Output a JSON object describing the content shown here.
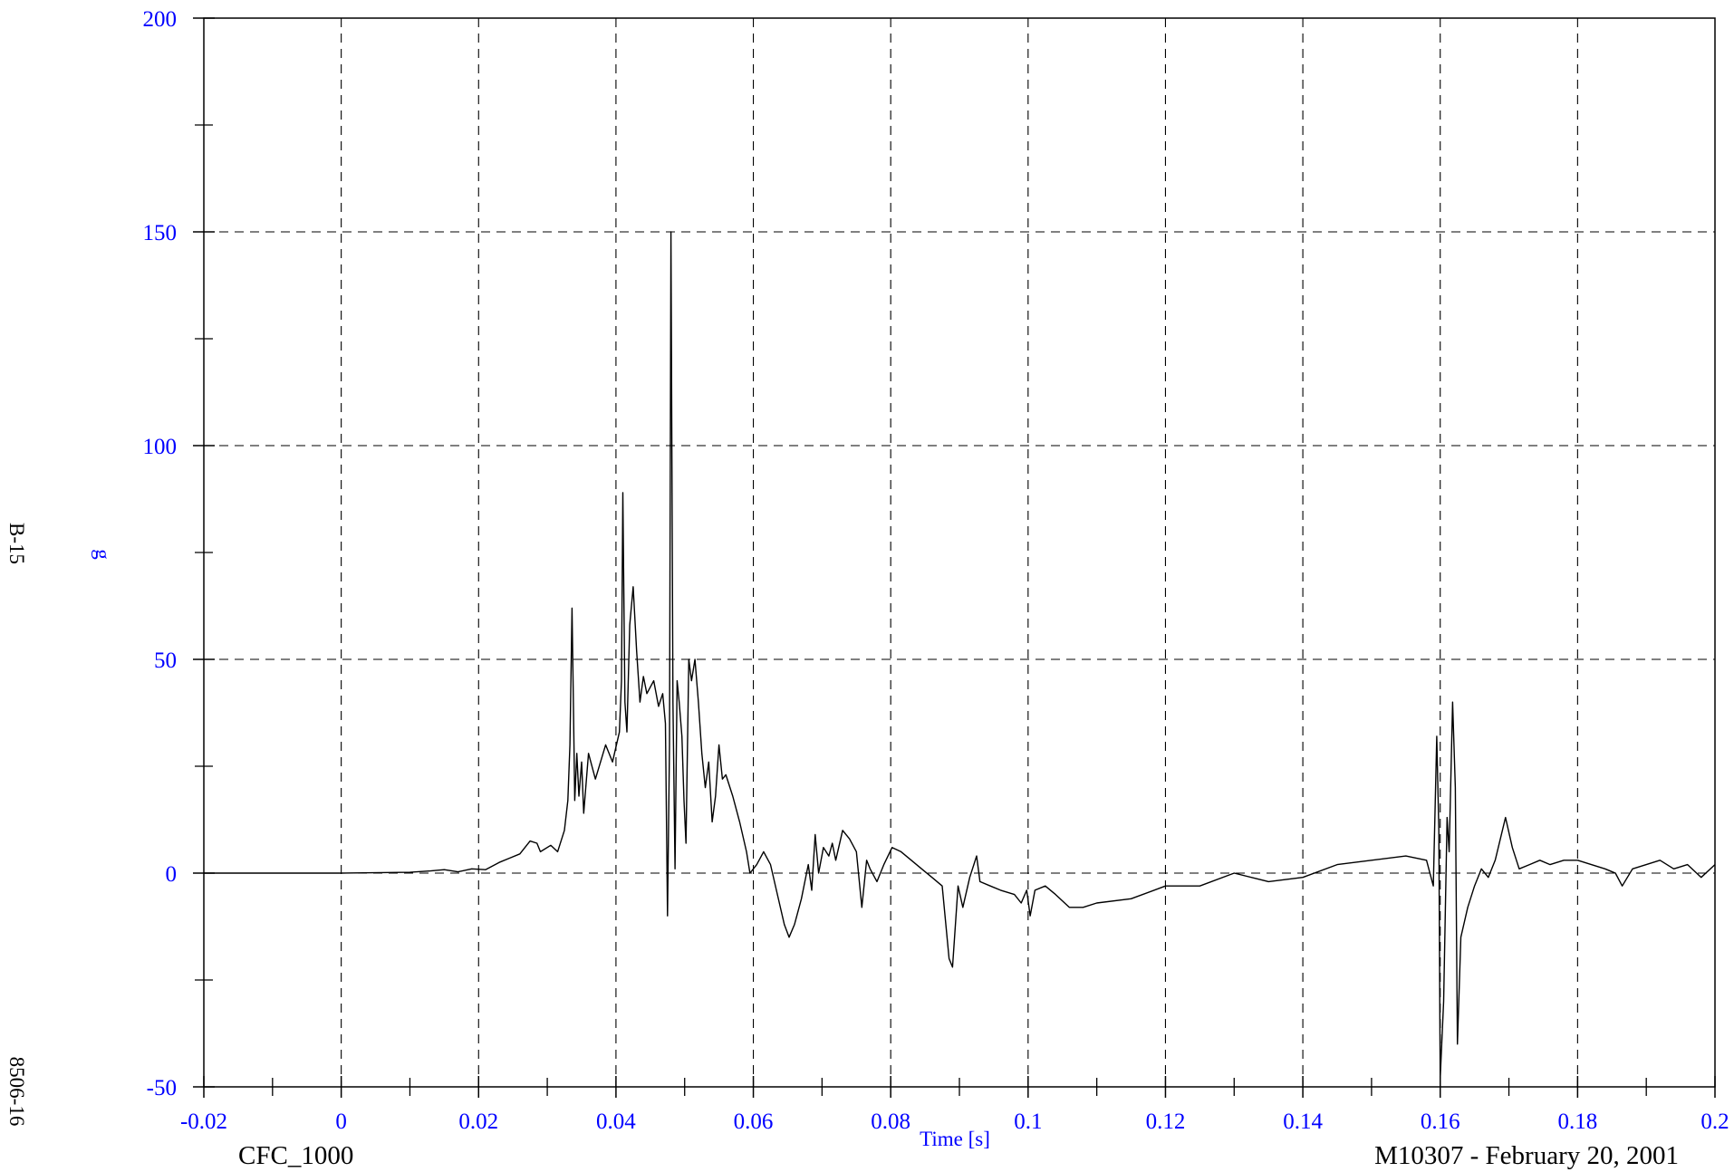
{
  "chart_data": {
    "type": "line",
    "xlabel": "Time [s]",
    "ylabel": "g",
    "xlim": [
      -0.02,
      0.2
    ],
    "ylim": [
      -50,
      200
    ],
    "x_ticks": [
      -0.02,
      0,
      0.02,
      0.04,
      0.06,
      0.08,
      0.1,
      0.12,
      0.14,
      0.16,
      0.18,
      0.2
    ],
    "x_tick_labels": [
      "-0.02",
      "0",
      "0.02",
      "0.04",
      "0.06",
      "0.08",
      "0.1",
      "0.12",
      "0.14",
      "0.16",
      "0.18",
      "0.2"
    ],
    "y_ticks": [
      -50,
      0,
      50,
      100,
      150,
      200
    ],
    "y_tick_labels": [
      "-50",
      "0",
      "50",
      "100",
      "150",
      "200"
    ],
    "grid": true,
    "series": [
      {
        "points": [
          [
            -0.02,
            0
          ],
          [
            0,
            0
          ],
          [
            0.01,
            0.2
          ],
          [
            0.013,
            0.5
          ],
          [
            0.015,
            0.8
          ],
          [
            0.017,
            0.3
          ],
          [
            0.019,
            1.0
          ],
          [
            0.021,
            0.8
          ],
          [
            0.023,
            2.5
          ],
          [
            0.0245,
            3.5
          ],
          [
            0.026,
            4.5
          ],
          [
            0.0275,
            7.5
          ],
          [
            0.0285,
            7.0
          ],
          [
            0.029,
            5.0
          ],
          [
            0.0305,
            6.5
          ],
          [
            0.0315,
            5.0
          ],
          [
            0.0325,
            10
          ],
          [
            0.033,
            17
          ],
          [
            0.0333,
            30
          ],
          [
            0.0336,
            62
          ],
          [
            0.0338,
            40
          ],
          [
            0.034,
            17
          ],
          [
            0.0343,
            28
          ],
          [
            0.0346,
            18
          ],
          [
            0.035,
            26
          ],
          [
            0.0353,
            14
          ],
          [
            0.036,
            28
          ],
          [
            0.037,
            22
          ],
          [
            0.0385,
            30
          ],
          [
            0.0395,
            26
          ],
          [
            0.0405,
            33
          ],
          [
            0.0408,
            45
          ],
          [
            0.041,
            89
          ],
          [
            0.0413,
            40
          ],
          [
            0.0416,
            33
          ],
          [
            0.042,
            58
          ],
          [
            0.0425,
            67
          ],
          [
            0.043,
            52
          ],
          [
            0.0435,
            40
          ],
          [
            0.044,
            46
          ],
          [
            0.0445,
            42
          ],
          [
            0.0455,
            45
          ],
          [
            0.0462,
            39
          ],
          [
            0.0468,
            42
          ],
          [
            0.0472,
            35
          ],
          [
            0.0475,
            -10
          ],
          [
            0.0478,
            30
          ],
          [
            0.048,
            150
          ],
          [
            0.0483,
            40
          ],
          [
            0.0486,
            1
          ],
          [
            0.0489,
            45
          ],
          [
            0.0492,
            40
          ],
          [
            0.0496,
            32
          ],
          [
            0.0499,
            17
          ],
          [
            0.0502,
            7
          ],
          [
            0.0506,
            50
          ],
          [
            0.051,
            45
          ],
          [
            0.0515,
            50
          ],
          [
            0.052,
            40
          ],
          [
            0.0525,
            28
          ],
          [
            0.053,
            20
          ],
          [
            0.0535,
            26
          ],
          [
            0.054,
            12
          ],
          [
            0.0545,
            18
          ],
          [
            0.055,
            30
          ],
          [
            0.0555,
            22
          ],
          [
            0.056,
            23
          ],
          [
            0.057,
            18
          ],
          [
            0.058,
            12
          ],
          [
            0.059,
            5
          ],
          [
            0.0595,
            0
          ],
          [
            0.0605,
            2
          ],
          [
            0.0615,
            5
          ],
          [
            0.0625,
            2
          ],
          [
            0.0635,
            -5
          ],
          [
            0.0645,
            -12
          ],
          [
            0.0652,
            -15
          ],
          [
            0.066,
            -12
          ],
          [
            0.067,
            -6
          ],
          [
            0.068,
            2
          ],
          [
            0.0685,
            -4
          ],
          [
            0.069,
            9
          ],
          [
            0.0695,
            0
          ],
          [
            0.0702,
            6
          ],
          [
            0.071,
            4
          ],
          [
            0.0715,
            7
          ],
          [
            0.072,
            3
          ],
          [
            0.073,
            10
          ],
          [
            0.074,
            8
          ],
          [
            0.075,
            5
          ],
          [
            0.0758,
            -8
          ],
          [
            0.0765,
            3
          ],
          [
            0.077,
            1
          ],
          [
            0.078,
            -2
          ],
          [
            0.079,
            2
          ],
          [
            0.0802,
            6
          ],
          [
            0.0815,
            5
          ],
          [
            0.083,
            3
          ],
          [
            0.0845,
            1
          ],
          [
            0.086,
            -1
          ],
          [
            0.0875,
            -3
          ],
          [
            0.0885,
            -20
          ],
          [
            0.089,
            -22
          ],
          [
            0.0898,
            -3
          ],
          [
            0.0905,
            -8
          ],
          [
            0.0915,
            -1
          ],
          [
            0.0925,
            4
          ],
          [
            0.093,
            -2
          ],
          [
            0.0945,
            -3
          ],
          [
            0.096,
            -4
          ],
          [
            0.098,
            -5
          ],
          [
            0.099,
            -7
          ],
          [
            0.0998,
            -4
          ],
          [
            0.1003,
            -10
          ],
          [
            0.101,
            -4
          ],
          [
            0.1025,
            -3
          ],
          [
            0.104,
            -5
          ],
          [
            0.106,
            -8
          ],
          [
            0.108,
            -8
          ],
          [
            0.11,
            -7
          ],
          [
            0.115,
            -6
          ],
          [
            0.12,
            -3
          ],
          [
            0.125,
            -3
          ],
          [
            0.13,
            0
          ],
          [
            0.135,
            -2
          ],
          [
            0.14,
            -1
          ],
          [
            0.145,
            2
          ],
          [
            0.15,
            3
          ],
          [
            0.155,
            4
          ],
          [
            0.158,
            3
          ],
          [
            0.159,
            -3
          ],
          [
            0.1595,
            32
          ],
          [
            0.1598,
            10
          ],
          [
            0.16,
            -48
          ],
          [
            0.1605,
            -30
          ],
          [
            0.161,
            13
          ],
          [
            0.1613,
            5
          ],
          [
            0.1618,
            40
          ],
          [
            0.1622,
            20
          ],
          [
            0.1625,
            -40
          ],
          [
            0.163,
            -15
          ],
          [
            0.164,
            -8
          ],
          [
            0.165,
            -3
          ],
          [
            0.166,
            1
          ],
          [
            0.167,
            -1
          ],
          [
            0.168,
            3
          ],
          [
            0.1695,
            13
          ],
          [
            0.1705,
            6
          ],
          [
            0.1715,
            1
          ],
          [
            0.173,
            2
          ],
          [
            0.1745,
            3
          ],
          [
            0.176,
            2
          ],
          [
            0.178,
            3
          ],
          [
            0.18,
            3
          ],
          [
            0.182,
            2
          ],
          [
            0.184,
            1
          ],
          [
            0.1855,
            0
          ],
          [
            0.1865,
            -3
          ],
          [
            0.188,
            1
          ],
          [
            0.19,
            2
          ],
          [
            0.192,
            3
          ],
          [
            0.194,
            1
          ],
          [
            0.196,
            2
          ],
          [
            0.198,
            -1
          ],
          [
            0.2,
            2
          ]
        ]
      }
    ]
  },
  "footer": {
    "left": "CFC_1000",
    "right": "M10307 - February 20, 2001"
  },
  "side": {
    "top": "B-15",
    "bottom": "8506-16"
  },
  "colors": {
    "label": "#0000ff",
    "line": "#000000",
    "grid": "#000000"
  }
}
